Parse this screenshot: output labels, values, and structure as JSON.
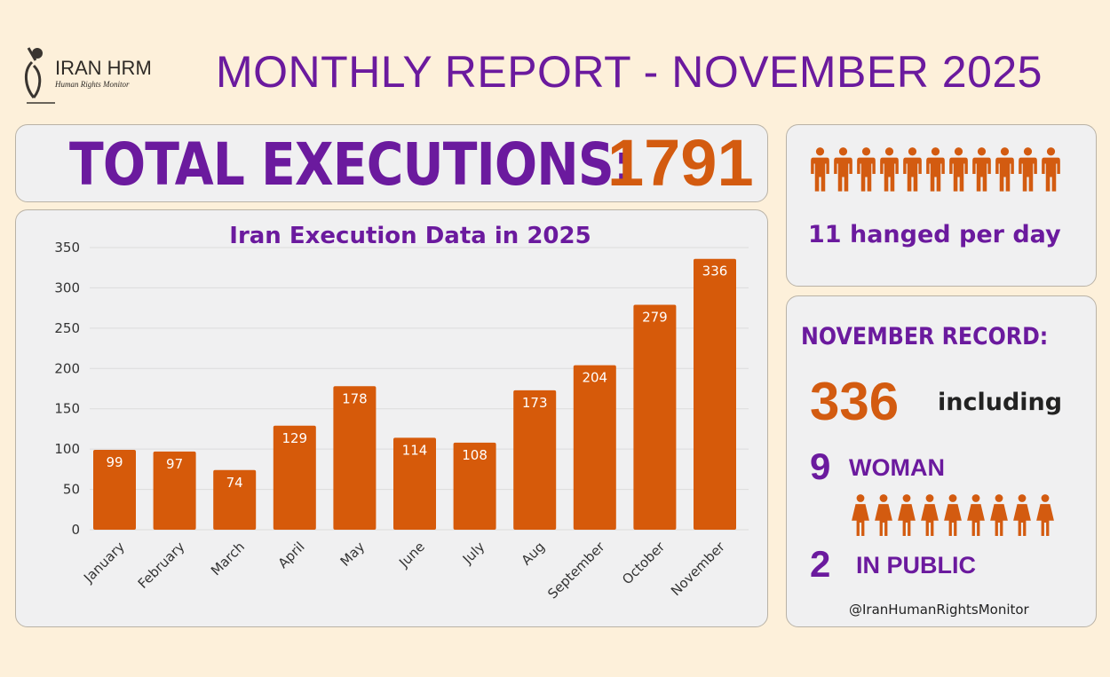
{
  "logo": {
    "name": "IRAN HRM",
    "tagline": "Human Rights Monitor"
  },
  "title": "MONTHLY REPORT - NOVEMBER 2025",
  "total": {
    "label": "TOTAL EXECUTIONS:",
    "value": "1791"
  },
  "per_day": {
    "text": "11 hanged per day",
    "icon_count": 11,
    "icon": "person-icon"
  },
  "record": {
    "heading": "NOVEMBER RECORD:",
    "count": "336",
    "including": "including",
    "women_count": "9",
    "women_label": "WOMAN",
    "women_icon_count": 9,
    "public_count": "2",
    "public_label": "IN PUBLIC",
    "handle": "@IranHumanRightsMonitor"
  },
  "colors": {
    "purple": "#6b1a9e",
    "orange": "#d35b10",
    "bar": "#d65a0a"
  },
  "chart_data": {
    "type": "bar",
    "title": "Iran Execution Data in 2025",
    "categories": [
      "January",
      "February",
      "March",
      "April",
      "May",
      "June",
      "July",
      "Aug",
      "September",
      "October",
      "November"
    ],
    "values": [
      99,
      97,
      74,
      129,
      178,
      114,
      108,
      173,
      204,
      279,
      336
    ],
    "yticks": [
      0,
      50,
      100,
      150,
      200,
      250,
      300,
      350
    ],
    "ylim": [
      0,
      350
    ],
    "xlabel": "",
    "ylabel": "",
    "grid": true
  }
}
